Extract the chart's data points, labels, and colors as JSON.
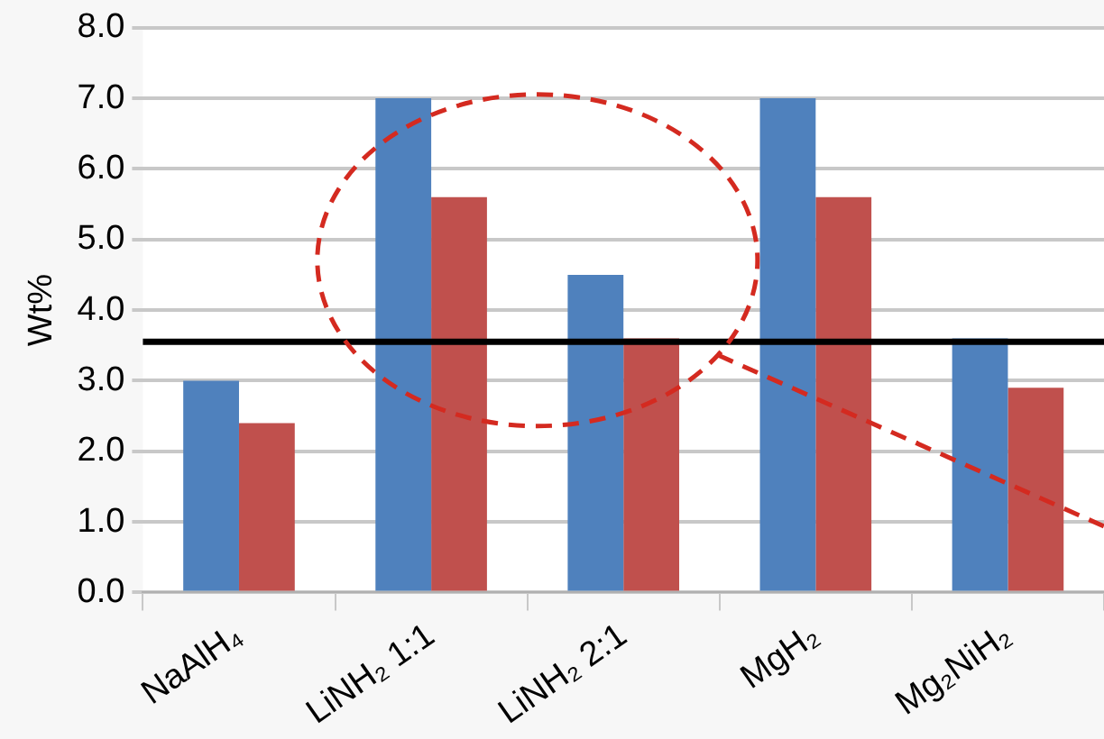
{
  "chart_data": {
    "type": "bar",
    "ylabel": "Wt%",
    "categories": [
      "NaAlH₄",
      "LiNH₂ 1:1",
      "LiNH₂ 2:1",
      "MgH₂",
      "Mg₂NiH₂"
    ],
    "series": [
      {
        "color": "#4f81bd",
        "values": [
          3.0,
          7.0,
          4.5,
          7.0,
          3.6
        ]
      },
      {
        "color": "#c0504d",
        "values": [
          2.4,
          5.6,
          3.6,
          5.6,
          2.9
        ]
      }
    ],
    "ylim": [
      0,
      8
    ],
    "yticks": [
      {
        "value": 0,
        "label": "0.0"
      },
      {
        "value": 1,
        "label": "1.0"
      },
      {
        "value": 2,
        "label": "2.0"
      },
      {
        "value": 3,
        "label": "3.0"
      },
      {
        "value": 4,
        "label": "4.0"
      },
      {
        "value": 5,
        "label": "5.0"
      },
      {
        "value": 6,
        "label": "6.0"
      },
      {
        "value": 7,
        "label": "7.0"
      },
      {
        "value": 8,
        "label": "8.0"
      }
    ],
    "grid": "y",
    "legend": false,
    "ref_lines": [
      {
        "axis": "y",
        "value": 3.55,
        "color": "#000000"
      }
    ]
  }
}
